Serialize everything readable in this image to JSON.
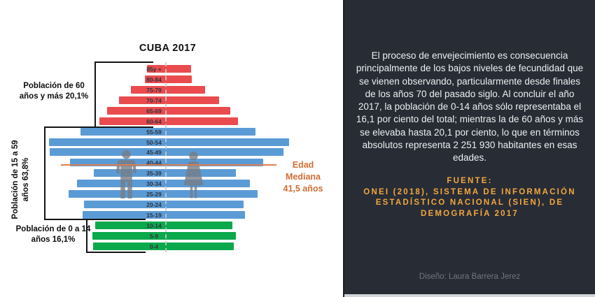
{
  "chart_data": {
    "type": "bar",
    "subtype": "population_pyramid_mirrored",
    "title": "CUBA 2017",
    "orientation": "horizontal",
    "value_axis": "none (no numeric axis shown; bar lengths are relative units)",
    "age_groups_top_to_bottom": [
      "85y +",
      "80-84",
      "75-79",
      "70-74",
      "65-69",
      "60-64",
      "55-59",
      "50-54",
      "45-49",
      "40-44",
      "35-39",
      "30-34",
      "25-29",
      "20-24",
      "15-19",
      "10-14",
      "5-9",
      "0-4"
    ],
    "series": [
      {
        "name": "lado izquierdo (hombres)",
        "side": "left",
        "values": [
          27,
          30,
          50,
          67,
          84,
          95,
          122,
          167,
          166,
          137,
          103,
          127,
          139,
          117,
          119,
          101,
          105,
          104
        ]
      },
      {
        "name": "lado derecho (mujeres)",
        "side": "right",
        "values": [
          36,
          37,
          56,
          76,
          92,
          103,
          128,
          176,
          168,
          139,
          100,
          120,
          131,
          111,
          113,
          95,
          100,
          97
        ]
      }
    ],
    "groups": [
      {
        "name": "60 y más",
        "row_start": 0,
        "row_end": 5,
        "color": "#ea4b4e",
        "label_lines": [
          "Población de 60",
          "años y más 20,1%"
        ]
      },
      {
        "name": "15 a 59",
        "row_start": 6,
        "row_end": 14,
        "color": "#5b9bd5",
        "label_lines": [
          "Población de 15 a 59",
          "años 63,8%"
        ]
      },
      {
        "name": "0 a 14",
        "row_start": 15,
        "row_end": 17,
        "color": "#0ca84c",
        "label_lines": [
          "Población de 0 a 14",
          "años 16,1%"
        ]
      }
    ],
    "annotations": [
      {
        "type": "median_line",
        "label": "Edad Mediana",
        "value": "41,5 años",
        "row": "40-44",
        "color": "#d26e35"
      }
    ]
  },
  "panel": {
    "background": "#282c35",
    "paragraph": "El proceso de envejecimiento es consecuencia principalmente de los bajos niveles de fecundidad que se vienen observando, particularmente desde finales de los años 70 del pasado siglo. Al concluir el año 2017, la población de 0-14 años sólo representaba el 16,1 por ciento del total; mientras la de 60 años y más se elevaba hasta 20,1 por ciento, lo que en términos absolutos representa 2 251 930 habitantes en esas edades.",
    "fuente_lines": [
      "FUENTE:",
      "ONEI (2018), SISTEMA DE INFORMACIÓN",
      "ESTADÍSTICO NACIONAL (SIEN), DE",
      "DEMOGRAFÍA 2017"
    ],
    "fuente_color": "#f1a73f",
    "credit": "Diseño: Laura Barrera Jerez"
  }
}
